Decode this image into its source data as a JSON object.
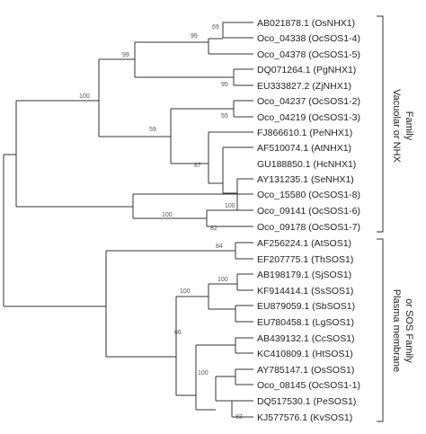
{
  "tree": {
    "leaves": [
      "AB021878.1 (OsNHX1)",
      "Oco_04338 (OcSOS1-4)",
      "Oco_04378 (OcSOS1-5)",
      "DQ071264.1 (PgNHX1)",
      "EU333827.2 (ZjNHX1)",
      "Oco_04237 (OcSOS1-2)",
      "Oco_04219 (OcSOS1-3)",
      "FJ866610.1 (PeNHX1)",
      "AF510074.1 (AtNHX1)",
      "AY131235.1 (SeNHX1)",
      "GU188850.1 (HcNHX1)",
      "Oco_15580 (OcSOS1-8)",
      "Oco_09141 (OcSOS1-6)",
      "Oco_09178 (OcSOS1-7)",
      "AF256224.1 (AtSOS1)",
      "EF207775.1 (ThSOS1)",
      "AB198179.1 (SjSOS1)",
      "KF914414.1 (SsSOS1)",
      "EU879059.1 (SbSOS1)",
      "EU780458.1 (LgSOS1)",
      "AB439132.1 (CcSOS1)",
      "KC410809.1 (HtSOS1)",
      "AY785147.1 (OsSOS1)",
      "Oco_08145 (OcSOS1-1)",
      "DQ517530.1 (PeSOS1)",
      "KJ577576.1 (KvSOS1)"
    ],
    "bootstrap": {
      "n69": "69",
      "n99a": "99",
      "n99b": "99",
      "n95": "95",
      "n100a": "100",
      "n55": "55",
      "n59": "59",
      "n87": "87",
      "n100b": "100",
      "n100c": "100",
      "n82": "82",
      "n84": "84",
      "n100d": "100",
      "n100e": "100",
      "n66": "66",
      "n100f": "100",
      "n83": "83"
    }
  },
  "families": {
    "vacuolar_line1": "Vacuolar or NHX",
    "vacuolar_line2": "Family",
    "plasma_line1": "Plasma membrane",
    "plasma_line2": "or SOS Family"
  }
}
